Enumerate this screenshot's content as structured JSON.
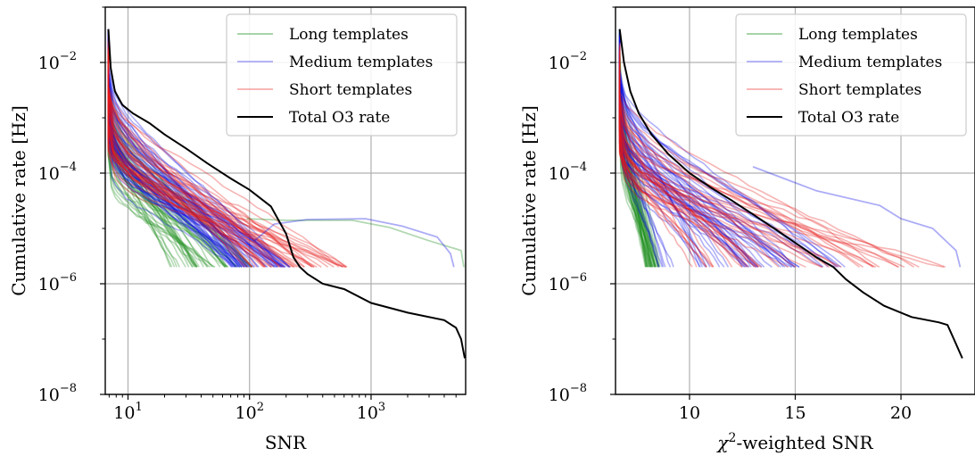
{
  "chart_data": [
    {
      "type": "line",
      "xlabel": "SNR",
      "ylabel": "Cumulative rate [Hz]",
      "xscale": "log",
      "yscale": "log",
      "xlim": [
        6.5,
        6000
      ],
      "ylim": [
        1e-08,
        0.1
      ],
      "grid": true,
      "legend_placement": "top-right",
      "xticks": [
        {
          "value": 10,
          "base": "10",
          "exp": "1"
        },
        {
          "value": 100,
          "base": "10",
          "exp": "2"
        },
        {
          "value": 1000,
          "base": "10",
          "exp": "3"
        }
      ],
      "yticks": [
        {
          "value": 0.01,
          "base": "10",
          "exp": "−2"
        },
        {
          "value": 0.0001,
          "base": "10",
          "exp": "−4"
        },
        {
          "value": 1e-06,
          "base": "10",
          "exp": "−6"
        },
        {
          "value": 1e-08,
          "base": "10",
          "exp": "−8"
        }
      ],
      "legend": [
        {
          "label": "Long templates",
          "color": "#5fb35f",
          "alpha": 0.55
        },
        {
          "label": "Medium templates",
          "color": "#4a4af0",
          "alpha": 0.4
        },
        {
          "label": "Short templates",
          "color": "#f06060",
          "alpha": 0.45
        },
        {
          "label": "Total O3 rate",
          "color": "#000000",
          "alpha": 1
        }
      ],
      "groups": [
        {
          "group": "Long templates",
          "color": "#1f8f1f",
          "count": 45,
          "start_x": 6.9,
          "start_y_range": [
            0.0002,
            0.006
          ],
          "end_x_range": [
            22,
            110
          ],
          "end_y": 2e-06
        },
        {
          "group": "Medium templates",
          "color": "#1010e6",
          "count": 55,
          "start_x": 6.9,
          "start_y_range": [
            0.0003,
            0.01
          ],
          "end_x_range": [
            70,
            220
          ],
          "end_y": 2e-06
        },
        {
          "group": "Short templates",
          "color": "#e61a1a",
          "count": 40,
          "start_x": 6.9,
          "start_y_range": [
            0.0002,
            0.004
          ],
          "end_x_range": [
            90,
            650
          ],
          "end_y": 2e-06
        }
      ],
      "outliers": [
        {
          "group": "Long templates",
          "color": "#1f8f1f",
          "x": [
            95,
            200,
            700,
            1400,
            3000,
            5500,
            5800
          ],
          "y": [
            1.5e-05,
            1.4e-05,
            1.4e-05,
            1.05e-05,
            6e-06,
            4e-06,
            2e-06
          ]
        },
        {
          "group": "Medium templates",
          "color": "#1010e6",
          "x": [
            110,
            160,
            300,
            900,
            1800,
            3500,
            4500,
            4800
          ],
          "y": [
            6e-06,
            1.2e-05,
            1.45e-05,
            1.5e-05,
            1.1e-05,
            7e-06,
            3.5e-06,
            2e-06
          ]
        }
      ],
      "series": [
        {
          "name": "Total O3 rate",
          "color": "#000000",
          "x": [
            6.9,
            7.2,
            7.8,
            9,
            11,
            15,
            20,
            30,
            45,
            70,
            100,
            150,
            200,
            230,
            260,
            300,
            400,
            600,
            1000,
            2000,
            4000,
            5000,
            5500,
            5900
          ],
          "y": [
            0.04,
            0.008,
            0.003,
            0.0017,
            0.0012,
            0.0008,
            0.0005,
            0.00028,
            0.00015,
            8e-05,
            5e-05,
            2.5e-05,
            8e-06,
            3e-06,
            2e-06,
            1.5e-06,
            1e-06,
            8e-07,
            4.5e-07,
            3e-07,
            2.2e-07,
            1.6e-07,
            1e-07,
            4.5e-08
          ]
        }
      ]
    },
    {
      "type": "line",
      "xlabel": "χ²-weighted SNR",
      "ylabel": "Cumulative rate [Hz]",
      "xscale": "linear",
      "yscale": "log",
      "xlim": [
        6.5,
        23.5
      ],
      "ylim": [
        1e-08,
        0.1
      ],
      "grid": true,
      "legend_placement": "top-right",
      "xticks": [
        {
          "value": 10,
          "label": "10"
        },
        {
          "value": 15,
          "label": "15"
        },
        {
          "value": 20,
          "label": "20"
        }
      ],
      "yticks": [
        {
          "value": 0.01,
          "base": "10",
          "exp": "−2"
        },
        {
          "value": 0.0001,
          "base": "10",
          "exp": "−4"
        },
        {
          "value": 1e-06,
          "base": "10",
          "exp": "−6"
        },
        {
          "value": 1e-08,
          "base": "10",
          "exp": "−8"
        }
      ],
      "legend": [
        {
          "label": "Long templates",
          "color": "#5fb35f",
          "alpha": 0.55
        },
        {
          "label": "Medium templates",
          "color": "#4a4af0",
          "alpha": 0.4
        },
        {
          "label": "Short templates",
          "color": "#f06060",
          "alpha": 0.45
        },
        {
          "label": "Total O3 rate",
          "color": "#000000",
          "alpha": 1
        }
      ],
      "groups": [
        {
          "group": "Long templates",
          "color": "#1f8f1f",
          "count": 40,
          "start_x": 6.7,
          "start_y_range": [
            0.0005,
            0.02
          ],
          "end_x_range": [
            7.9,
            8.6
          ],
          "end_y": 2e-06
        },
        {
          "group": "Medium templates",
          "color": "#1010e6",
          "count": 50,
          "start_x": 6.7,
          "start_y_range": [
            0.0003,
            0.008
          ],
          "end_x_range": [
            8.5,
            17.5
          ],
          "end_y": 2e-06
        },
        {
          "group": "Short templates",
          "color": "#e61a1a",
          "count": 40,
          "start_x": 6.7,
          "start_y_range": [
            0.0002,
            0.003
          ],
          "end_x_range": [
            10,
            22.5
          ],
          "end_y": 2e-06
        }
      ],
      "outliers": [
        {
          "group": "Medium templates",
          "color": "#1010e6",
          "x": [
            13,
            16,
            19,
            20,
            21.5,
            22.6,
            22.8
          ],
          "y": [
            0.00013,
            4.8e-05,
            2.6e-05,
            1.5e-05,
            1e-05,
            4e-06,
            2e-06
          ]
        }
      ],
      "series": [
        {
          "name": "Total O3 rate",
          "color": "#000000",
          "x": [
            6.7,
            6.9,
            7.2,
            7.6,
            8.2,
            9,
            10,
            11,
            12,
            13,
            14,
            15,
            16,
            16.8,
            17.4,
            18.2,
            19.2,
            20.5,
            21.8,
            22.2,
            22.5,
            22.9
          ],
          "y": [
            0.04,
            0.01,
            0.003,
            0.0012,
            0.0005,
            0.00022,
            0.0001,
            5.5e-05,
            3.2e-05,
            1.8e-05,
            1e-05,
            5.5e-06,
            3e-06,
            2e-06,
            1.2e-06,
            7e-07,
            4e-07,
            2.5e-07,
            2e-07,
            1.8e-07,
            1e-07,
            4.5e-08
          ]
        }
      ]
    }
  ]
}
